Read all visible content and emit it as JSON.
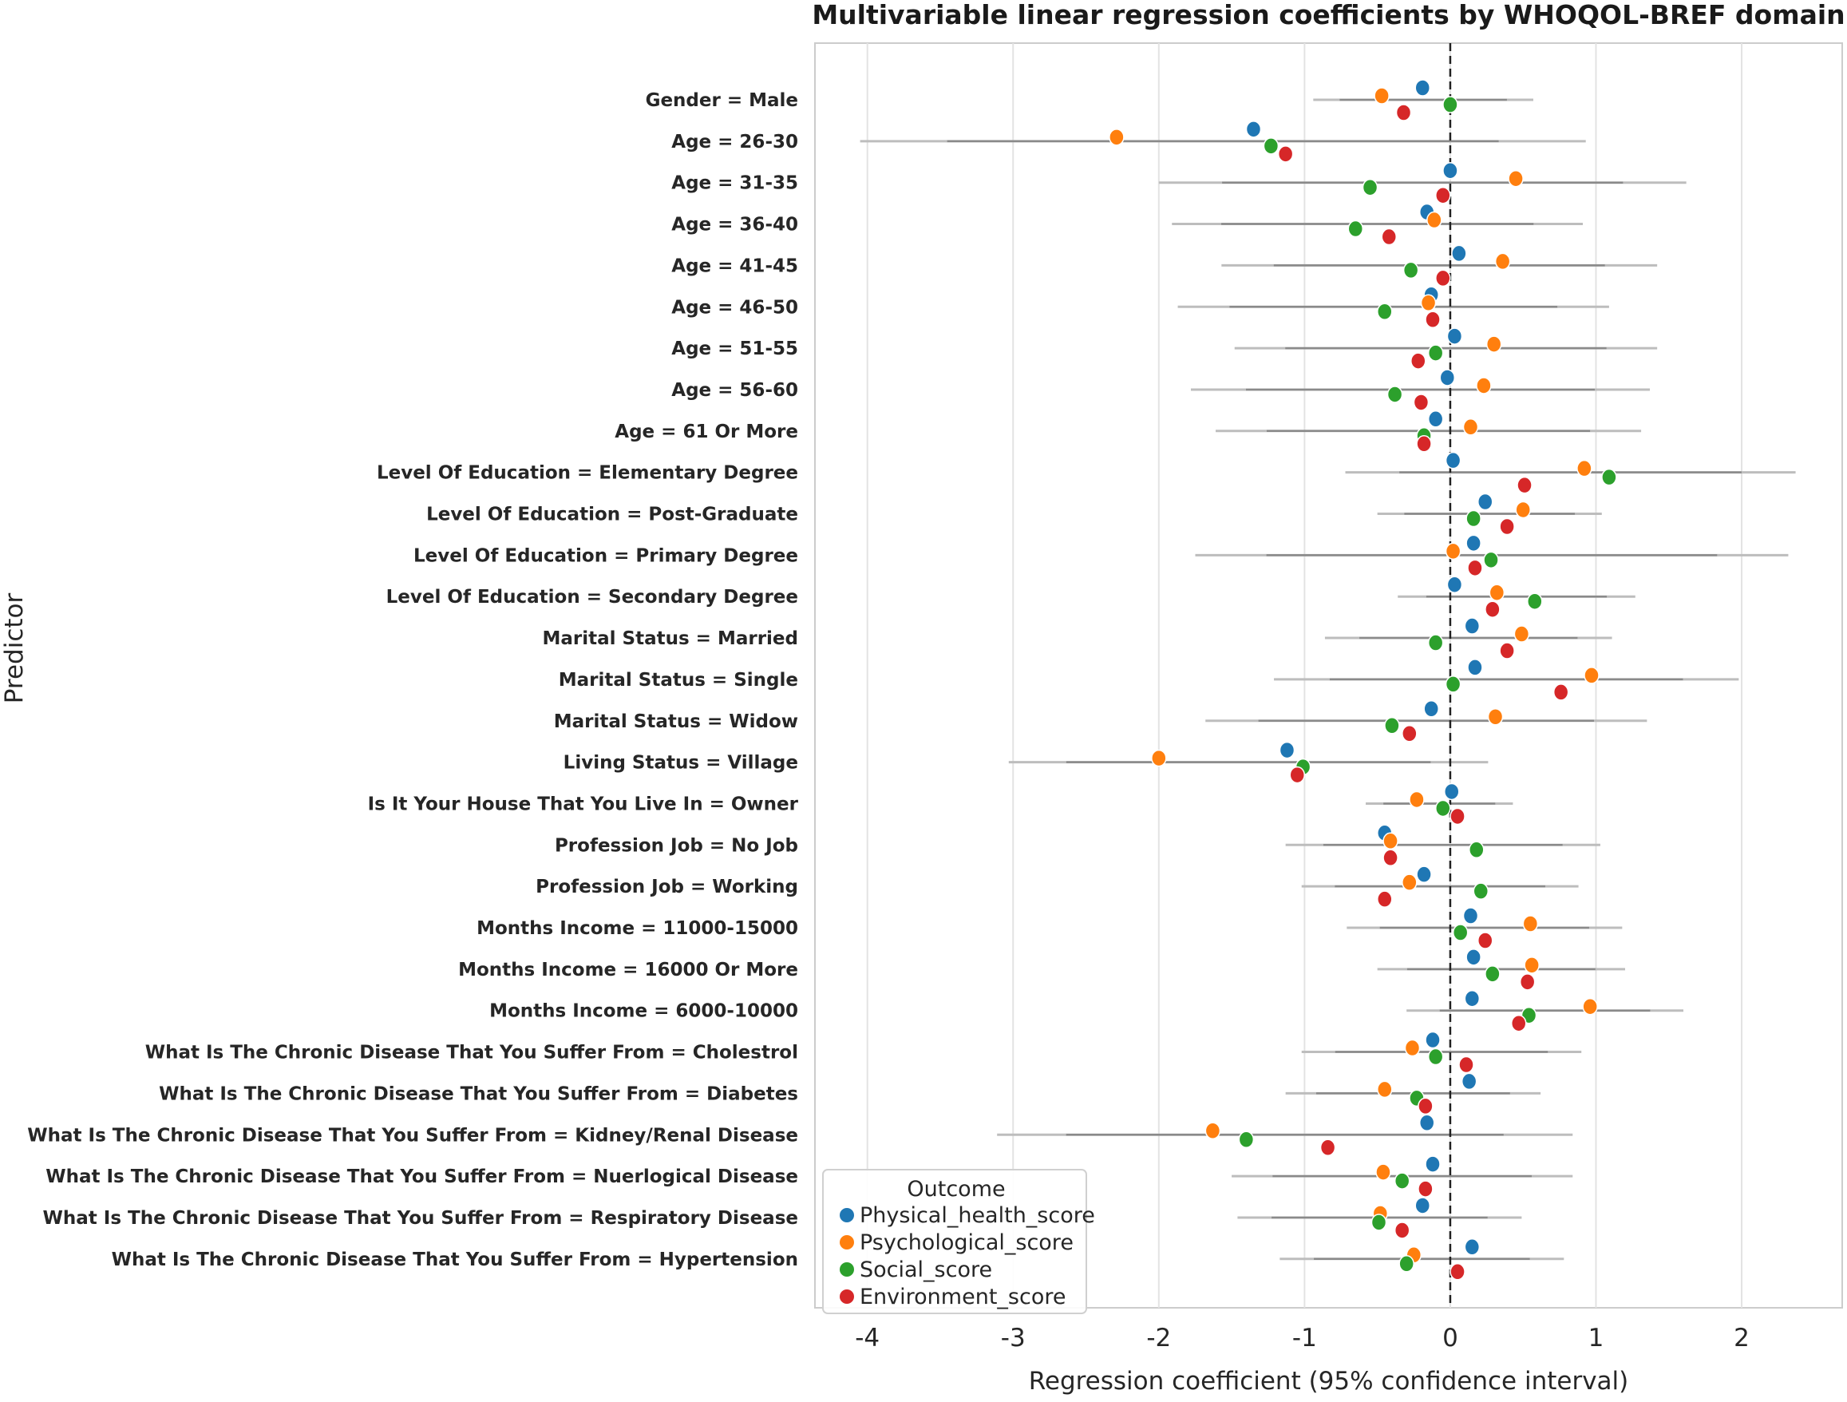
{
  "chart_data": {
    "type": "scatter",
    "subtype": "coefficient-forest-plot",
    "title": "Multivariable linear regression coefficients by WHOQOL-BREF domain",
    "xlabel": "Regression coefficient (95% confidence interval)",
    "ylabel": "Predictor",
    "xlim": [
      -4.36,
      2.69
    ],
    "xticks": [
      -4,
      -3,
      -2,
      -1,
      0,
      1,
      2
    ],
    "xtick_labels": [
      "-4",
      "-3",
      "-2",
      "-1",
      "0",
      "1",
      "2"
    ],
    "reference_line": 0,
    "grid": true,
    "legend": {
      "title": "Outcome",
      "placement": "bottom-left"
    },
    "series": [
      {
        "name": "Physical_health_score",
        "color": "#1f77b4"
      },
      {
        "name": "Psychological_score",
        "color": "#ff7f0e"
      },
      {
        "name": "Social_score",
        "color": "#2ca02c"
      },
      {
        "name": "Environment_score",
        "color": "#d62728"
      }
    ],
    "predictors": [
      {
        "label": "Gender =  Male",
        "values": [
          -0.19,
          -0.47,
          0.0,
          -0.32
        ],
        "ci": [
          -0.94,
          0.57
        ]
      },
      {
        "label": "Age =  26-30",
        "values": [
          -1.35,
          -2.29,
          -1.23,
          -1.13
        ],
        "ci": [
          -4.05,
          0.93
        ]
      },
      {
        "label": "Age =  31-35",
        "values": [
          0.0,
          0.45,
          -0.55,
          -0.05
        ],
        "ci": [
          -2.0,
          1.62
        ]
      },
      {
        "label": "Age =  36-40",
        "values": [
          -0.16,
          -0.11,
          -0.65,
          -0.42
        ],
        "ci": [
          -1.91,
          0.91
        ]
      },
      {
        "label": "Age =  41-45",
        "values": [
          0.06,
          0.36,
          -0.27,
          -0.05
        ],
        "ci": [
          -1.57,
          1.42
        ]
      },
      {
        "label": "Age =  46-50",
        "values": [
          -0.13,
          -0.15,
          -0.45,
          -0.12
        ],
        "ci": [
          -1.87,
          1.09
        ]
      },
      {
        "label": "Age =  51-55",
        "values": [
          0.03,
          0.3,
          -0.1,
          -0.22
        ],
        "ci": [
          -1.48,
          1.42
        ]
      },
      {
        "label": "Age =  56-60",
        "values": [
          -0.02,
          0.23,
          -0.38,
          -0.2
        ],
        "ci": [
          -1.78,
          1.37
        ]
      },
      {
        "label": "Age =  61 Or More",
        "values": [
          -0.1,
          0.14,
          -0.18,
          -0.18
        ],
        "ci": [
          -1.61,
          1.31
        ]
      },
      {
        "label": "Level Of Education =  Elementary Degree",
        "values": [
          0.02,
          0.92,
          1.09,
          0.51
        ],
        "ci": [
          -0.72,
          2.37
        ]
      },
      {
        "label": "Level Of Education =  Post-Graduate",
        "values": [
          0.24,
          0.5,
          0.16,
          0.39
        ],
        "ci": [
          -0.5,
          1.04
        ]
      },
      {
        "label": "Level Of Education =  Primary Degree",
        "values": [
          0.16,
          0.02,
          0.28,
          0.17
        ],
        "ci": [
          -1.75,
          2.32
        ]
      },
      {
        "label": "Level Of Education =  Secondary Degree",
        "values": [
          0.03,
          0.32,
          0.58,
          0.29
        ],
        "ci": [
          -0.36,
          1.27
        ]
      },
      {
        "label": "Marital Status =  Married",
        "values": [
          0.15,
          0.49,
          -0.1,
          0.39
        ],
        "ci": [
          -0.86,
          1.11
        ]
      },
      {
        "label": "Marital Status =  Single",
        "values": [
          0.17,
          0.97,
          0.02,
          0.76
        ],
        "ci": [
          -1.21,
          1.98
        ]
      },
      {
        "label": "Marital Status =  Widow",
        "values": [
          -0.13,
          0.31,
          -0.4,
          -0.28
        ],
        "ci": [
          -1.68,
          1.35
        ]
      },
      {
        "label": "Living Status =  Village",
        "values": [
          -1.12,
          -2.0,
          -1.01,
          -1.05
        ],
        "ci": [
          -3.03,
          0.26
        ]
      },
      {
        "label": "Is It Your House That You Live In =  Owner",
        "values": [
          0.01,
          -0.23,
          -0.05,
          0.05
        ],
        "ci": [
          -0.58,
          0.43
        ]
      },
      {
        "label": "Profession Job =  No Job",
        "values": [
          -0.45,
          -0.41,
          0.18,
          -0.41
        ],
        "ci": [
          -1.13,
          1.03
        ]
      },
      {
        "label": "Profession Job =  Working",
        "values": [
          -0.18,
          -0.28,
          0.21,
          -0.45
        ],
        "ci": [
          -1.02,
          0.88
        ]
      },
      {
        "label": "Months Income =  11000-15000",
        "values": [
          0.14,
          0.55,
          0.07,
          0.24
        ],
        "ci": [
          -0.71,
          1.18
        ]
      },
      {
        "label": "Months Income =  16000 Or More",
        "values": [
          0.16,
          0.56,
          0.29,
          0.53
        ],
        "ci": [
          -0.5,
          1.2
        ]
      },
      {
        "label": "Months Income =  6000-10000",
        "values": [
          0.15,
          0.96,
          0.54,
          0.47
        ],
        "ci": [
          -0.3,
          1.6
        ]
      },
      {
        "label": "What Is The Chronic Disease That You Suffer From =  Cholestrol",
        "values": [
          -0.12,
          -0.26,
          -0.1,
          0.11
        ],
        "ci": [
          -1.02,
          0.9
        ]
      },
      {
        "label": "What Is The Chronic Disease That You Suffer From =  Diabetes",
        "values": [
          0.13,
          -0.45,
          -0.23,
          -0.17
        ],
        "ci": [
          -1.13,
          0.62
        ]
      },
      {
        "label": "What Is The Chronic Disease That You Suffer From =  Kidney/Renal Disease",
        "values": [
          -0.16,
          -1.63,
          -1.4,
          -0.84
        ],
        "ci": [
          -3.11,
          0.84
        ]
      },
      {
        "label": "What Is The Chronic Disease That You Suffer From =  Nuerlogical Disease",
        "values": [
          -0.12,
          -0.46,
          -0.33,
          -0.17
        ],
        "ci": [
          -1.5,
          0.84
        ]
      },
      {
        "label": "What Is The Chronic Disease That You Suffer From =  Respiratory Disease",
        "values": [
          -0.19,
          -0.48,
          -0.49,
          -0.33
        ],
        "ci": [
          -1.46,
          0.49
        ]
      },
      {
        "label": "What Is The Chronic Disease That You Suffer From =  Hypertension",
        "values": [
          0.15,
          -0.25,
          -0.3,
          0.05
        ],
        "ci": [
          -1.17,
          0.78
        ]
      }
    ]
  }
}
